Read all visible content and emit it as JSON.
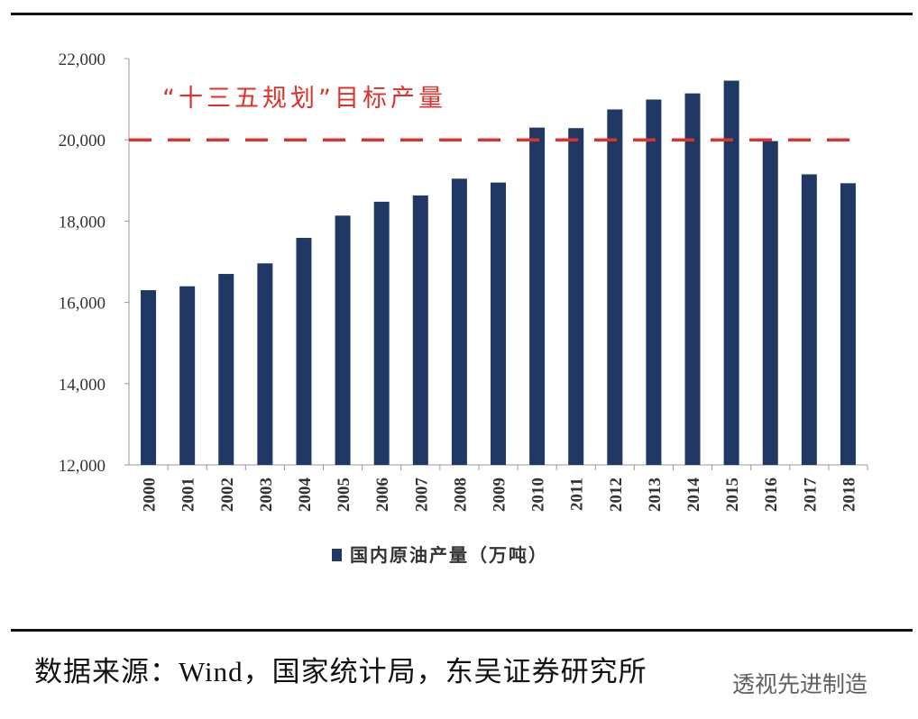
{
  "chart_data": {
    "type": "bar",
    "categories": [
      "2000",
      "2001",
      "2002",
      "2003",
      "2004",
      "2005",
      "2006",
      "2007",
      "2008",
      "2009",
      "2010",
      "2011",
      "2012",
      "2013",
      "2014",
      "2015",
      "2016",
      "2017",
      "2018"
    ],
    "series": [
      {
        "name": "国内原油产量（万吨）",
        "values": [
          16300,
          16396,
          16700,
          16960,
          17587,
          18135,
          18477,
          18632,
          19044,
          18949,
          20301,
          20288,
          20748,
          20992,
          21143,
          21456,
          19969,
          19151,
          18932
        ],
        "color": "#1f3864"
      }
    ],
    "ylim": [
      12000,
      22000
    ],
    "yticks": [
      "12,000",
      "14,000",
      "16,000",
      "18,000",
      "20,000",
      "22,000"
    ],
    "reference_line": {
      "value": 20000,
      "label": "“十三五规划”目标产量",
      "style": "dashed",
      "color": "#e0302a"
    },
    "legend": "bottom",
    "grid": false
  },
  "source_text": "数据来源：Wind，国家统计局，东吴证券研究所",
  "watermark": "透视先进制造"
}
